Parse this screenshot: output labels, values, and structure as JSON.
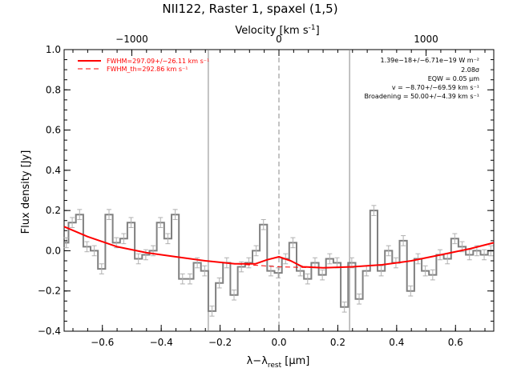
{
  "chart_data": {
    "type": "line",
    "title": "NII122, Raster 1, spaxel (1,5)",
    "xlabel": "λ−λrest [μm]",
    "xlabel_main": "λ−λ",
    "xlabel_sub": "rest",
    "xlabel_unit": " [μm]",
    "ylabel": "Flux density [Jy]",
    "top_axis_label": "Velocity [km s⁻¹]",
    "xlim": [
      -0.73,
      0.73
    ],
    "ylim": [
      -0.4,
      1.0
    ],
    "x_ticks": [
      -0.6,
      -0.4,
      -0.2,
      0.0,
      0.2,
      0.4,
      0.6
    ],
    "x_tick_labels": [
      "−0.6",
      "−0.4",
      "−0.2",
      "0.0",
      "0.2",
      "0.4",
      "0.6"
    ],
    "y_ticks": [
      -0.4,
      -0.2,
      0.0,
      0.2,
      0.4,
      0.6,
      0.8,
      1.0
    ],
    "y_tick_labels": [
      "−0.4",
      "−0.2",
      "0.0",
      "0.2",
      "0.4",
      "0.6",
      "0.8",
      "1.0"
    ],
    "top_ticks_x": [
      -0.5,
      0.0,
      0.5
    ],
    "top_tick_labels": [
      "−1000",
      "0",
      "1000"
    ],
    "vertical_lines": [
      {
        "x": -0.24,
        "style": "solid"
      },
      {
        "x": 0.0,
        "style": "dashed"
      },
      {
        "x": 0.24,
        "style": "solid"
      }
    ],
    "legend": {
      "position": "top-left",
      "entries": [
        {
          "label": "FWHM=297.09+/−26.11 km s⁻¹",
          "style": "solid",
          "color": "#ff0000"
        },
        {
          "label": "FWHM_th=292.86 km s⁻¹",
          "style": "dashed",
          "color": "#ff0000"
        }
      ]
    },
    "annotations": {
      "position": "top-right",
      "lines": [
        "1.39e−18+/−6.71e−19 W m⁻²",
        "2.08σ",
        "EQW = 0.05 μm",
        "v = −8.70+/−69.59 km s⁻¹",
        "Broadening = 50.00+/−4.39 km s⁻¹"
      ]
    },
    "series": [
      {
        "kind": "histogram",
        "color": "#808080",
        "bin_edges": [
          -0.73,
          -0.715,
          -0.69,
          -0.665,
          -0.64,
          -0.615,
          -0.59,
          -0.565,
          -0.54,
          -0.515,
          -0.49,
          -0.465,
          -0.44,
          -0.415,
          -0.39,
          -0.365,
          -0.34,
          -0.315,
          -0.29,
          -0.265,
          -0.24,
          -0.215,
          -0.19,
          -0.165,
          -0.14,
          -0.115,
          -0.09,
          -0.065,
          -0.04,
          -0.015,
          0.01,
          0.035,
          0.06,
          0.085,
          0.11,
          0.135,
          0.16,
          0.185,
          0.21,
          0.235,
          0.26,
          0.285,
          0.31,
          0.335,
          0.36,
          0.385,
          0.41,
          0.435,
          0.46,
          0.485,
          0.51,
          0.535,
          0.56,
          0.585,
          0.61,
          0.635,
          0.66,
          0.685,
          0.71,
          0.73
        ],
        "values": [
          0.04,
          0.14,
          0.18,
          0.02,
          0.0,
          -0.09,
          0.18,
          0.04,
          0.06,
          0.14,
          -0.04,
          -0.02,
          0.0,
          0.14,
          0.06,
          0.18,
          -0.14,
          -0.14,
          -0.06,
          -0.1,
          -0.3,
          -0.16,
          -0.06,
          -0.22,
          -0.08,
          -0.06,
          0.0,
          0.13,
          -0.1,
          -0.11,
          -0.04,
          0.04,
          -0.1,
          -0.14,
          -0.06,
          -0.12,
          -0.04,
          -0.06,
          -0.28,
          -0.06,
          -0.24,
          -0.1,
          0.2,
          -0.1,
          0.0,
          -0.06,
          0.05,
          -0.2,
          -0.04,
          -0.1,
          -0.12,
          -0.02,
          -0.04,
          0.06,
          0.02,
          -0.02,
          0.0,
          -0.02,
          0.0
        ],
        "errors": [
          0.025,
          0.025,
          0.025,
          0.025,
          0.025,
          0.025,
          0.025,
          0.025,
          0.025,
          0.025,
          0.025,
          0.025,
          0.025,
          0.025,
          0.025,
          0.025,
          0.025,
          0.025,
          0.025,
          0.025,
          0.025,
          0.025,
          0.025,
          0.025,
          0.025,
          0.025,
          0.025,
          0.025,
          0.025,
          0.025,
          0.025,
          0.025,
          0.025,
          0.025,
          0.025,
          0.025,
          0.025,
          0.025,
          0.025,
          0.025,
          0.025,
          0.025,
          0.025,
          0.025,
          0.025,
          0.025,
          0.025,
          0.025,
          0.025,
          0.025,
          0.025,
          0.025,
          0.025,
          0.025,
          0.025,
          0.025,
          0.025,
          0.025,
          0.025
        ]
      },
      {
        "kind": "line",
        "name": "FWHM=297.09+/−26.11 km s⁻¹",
        "color": "#ff0000",
        "x": [
          -0.73,
          -0.65,
          -0.55,
          -0.45,
          -0.35,
          -0.25,
          -0.15,
          -0.08,
          -0.04,
          0.0,
          0.04,
          0.08,
          0.15,
          0.25,
          0.35,
          0.45,
          0.55,
          0.65,
          0.73
        ],
        "y": [
          0.12,
          0.07,
          0.02,
          -0.01,
          -0.03,
          -0.05,
          -0.065,
          -0.065,
          -0.045,
          -0.03,
          -0.05,
          -0.08,
          -0.085,
          -0.08,
          -0.07,
          -0.05,
          -0.02,
          0.01,
          0.04
        ]
      },
      {
        "kind": "line",
        "name": "FWHM_th=292.86 km s⁻¹",
        "style": "dashed",
        "color": "#ff0000",
        "x": [
          -0.25,
          -0.15,
          -0.05,
          0.0,
          0.05,
          0.15,
          0.25
        ],
        "y": [
          -0.05,
          -0.065,
          -0.075,
          -0.08,
          -0.082,
          -0.085,
          -0.08
        ]
      }
    ]
  }
}
